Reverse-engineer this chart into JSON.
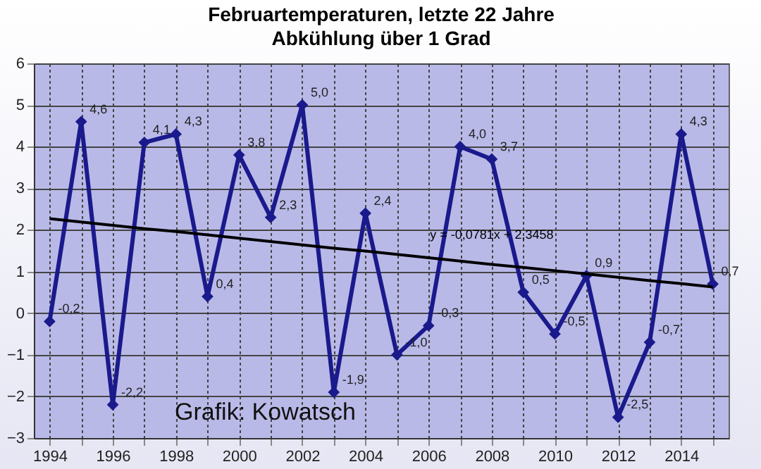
{
  "chart_data": {
    "type": "line",
    "title": "Februartemperaturen, letzte 22 Jahre",
    "subtitle": "Abkühlung über 1 Grad",
    "categories": [
      "1994",
      null,
      "1996",
      null,
      "1998",
      null,
      "2000",
      null,
      "2002",
      null,
      "2004",
      null,
      "2006",
      null,
      "2008",
      null,
      "2010",
      null,
      "2012",
      null,
      "2014",
      null
    ],
    "series": [
      {
        "color": "#1a1a8c",
        "marker": "diamond",
        "values": [
          -0.2,
          4.6,
          -2.2,
          4.1,
          4.3,
          0.4,
          3.8,
          2.3,
          5.0,
          -1.9,
          2.4,
          -1.0,
          -0.3,
          4.0,
          3.7,
          0.5,
          -0.5,
          0.9,
          -2.5,
          -0.7,
          4.3,
          0.7
        ],
        "value_labels": [
          "-0,2",
          "4,6",
          "-2,2",
          "4,1",
          "4,3",
          "0,4",
          "3,8",
          "2,3",
          "5,0",
          "-1,9",
          "2,4",
          "-1,0",
          "-0,3",
          "4,0",
          "3,7",
          "0,5",
          "-0,5",
          "0,9",
          "-2,5",
          "-0,7",
          "4,3",
          "0,7"
        ]
      },
      {
        "type": "line",
        "color": "#000000",
        "marker": "none",
        "values": [
          2.27,
          2.19,
          2.11,
          2.03,
          1.96,
          1.88,
          1.8,
          1.72,
          1.64,
          1.56,
          1.49,
          1.41,
          1.33,
          1.25,
          1.17,
          1.1,
          1.02,
          0.94,
          0.86,
          0.78,
          0.71,
          0.63
        ]
      }
    ],
    "ylim": [
      -3,
      6
    ],
    "yticks": [
      -3,
      -2,
      -1,
      0,
      1,
      2,
      3,
      4,
      5,
      6
    ],
    "grid": true,
    "annotations": [
      {
        "text": "y = -0,0781x + 2,3458",
        "x": "2008",
        "y": 1.35
      },
      "Grafik: Kowatsch"
    ]
  }
}
